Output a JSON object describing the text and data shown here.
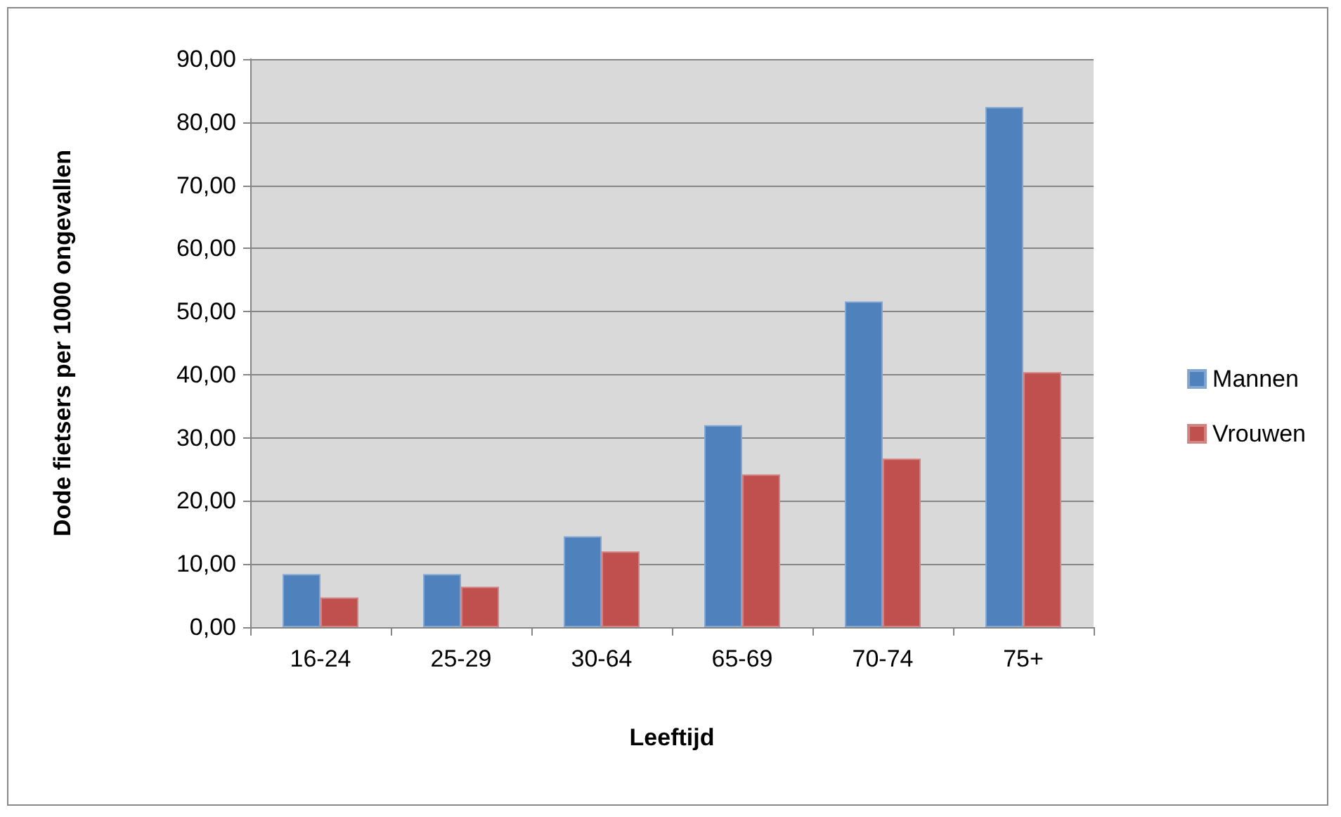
{
  "chart_data": {
    "type": "bar",
    "xlabel": "Leeftijd",
    "ylabel": "Dode fietsers per 1000 ongevallen",
    "categories": [
      "16-24",
      "25-29",
      "30-64",
      "65-69",
      "70-74",
      "75+"
    ],
    "series": [
      {
        "name": "Mannen",
        "color": "#4f81bd",
        "values": [
          8.4,
          8.4,
          14.4,
          32.0,
          51.6,
          82.4
        ]
      },
      {
        "name": "Vrouwen",
        "color": "#c0504d",
        "values": [
          4.7,
          6.4,
          12.0,
          24.2,
          26.7,
          40.4
        ]
      }
    ],
    "ylim": [
      0,
      90
    ],
    "yticks": [
      {
        "value": 0,
        "label": "0,00"
      },
      {
        "value": 10,
        "label": "10,00"
      },
      {
        "value": 20,
        "label": "20,00"
      },
      {
        "value": 30,
        "label": "30,00"
      },
      {
        "value": 40,
        "label": "40,00"
      },
      {
        "value": 50,
        "label": "50,00"
      },
      {
        "value": 60,
        "label": "60,00"
      },
      {
        "value": 70,
        "label": "70,00"
      },
      {
        "value": 80,
        "label": "80,00"
      },
      {
        "value": 90,
        "label": "90,00"
      }
    ],
    "grid": "y",
    "legend": "right"
  }
}
